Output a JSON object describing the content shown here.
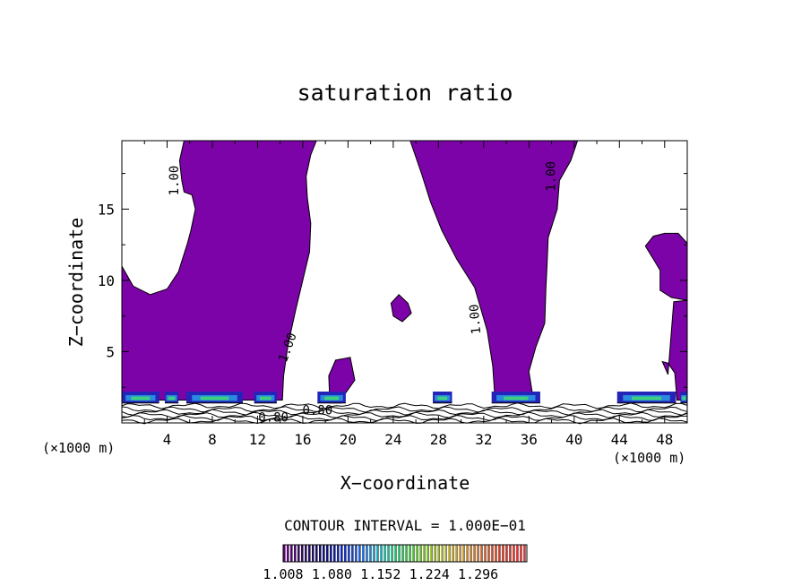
{
  "chart_data": {
    "type": "contour",
    "title": "saturation ratio",
    "xlabel": "X−coordinate",
    "ylabel": "Z−coordinate",
    "x_unit_left": "(×1000 m)",
    "x_unit_right": "(×1000 m)",
    "xlim": [
      0,
      50
    ],
    "ylim": [
      0,
      19.8
    ],
    "x_ticks": [
      4,
      8,
      12,
      16,
      20,
      24,
      28,
      32,
      36,
      40,
      44,
      48
    ],
    "x_tick_labels": [
      "4",
      "8",
      "12",
      "16",
      "20",
      "24",
      "28",
      "32",
      "36",
      "40",
      "44",
      "48"
    ],
    "y_ticks": [
      5,
      10,
      15
    ],
    "y_tick_labels": [
      "5",
      "10",
      "15"
    ],
    "contour_interval_text": "CONTOUR INTERVAL = 1.000E−01",
    "contour_labels": [
      {
        "text": "1.00",
        "x": 5.0,
        "z": 17.0,
        "angle": -90
      },
      {
        "text": "1.00",
        "x": 38.3,
        "z": 17.3,
        "angle": -90
      },
      {
        "text": "1.00",
        "x": 31.6,
        "z": 7.3,
        "angle": -95
      },
      {
        "text": "1.00",
        "x": 15.0,
        "z": 5.2,
        "angle": -70
      },
      {
        "text": "0.80",
        "x": 17.3,
        "z": 0.6,
        "angle": 0
      },
      {
        "text": "0.80",
        "x": 13.4,
        "z": 0.1,
        "angle": 0
      }
    ],
    "supersaturated_regions": [
      {
        "name": "western plume",
        "outline": [
          [
            0,
            11
          ],
          [
            1,
            9.6
          ],
          [
            2.5,
            9
          ],
          [
            4,
            9.4
          ],
          [
            5,
            10.6
          ],
          [
            5.8,
            12.6
          ],
          [
            6.1,
            13.5
          ],
          [
            6.5,
            15
          ],
          [
            6.2,
            16
          ],
          [
            5.5,
            16.2
          ],
          [
            5.3,
            17
          ],
          [
            5.1,
            18.4
          ],
          [
            5.5,
            19.8
          ],
          [
            17.2,
            19.8
          ],
          [
            16.7,
            18.8
          ],
          [
            16.3,
            17.3
          ],
          [
            16.4,
            15.8
          ],
          [
            16.7,
            14
          ],
          [
            16.6,
            12
          ],
          [
            16,
            10
          ],
          [
            15.4,
            8
          ],
          [
            14.7,
            5.5
          ],
          [
            14.3,
            3.3
          ],
          [
            14.2,
            1.6
          ],
          [
            0,
            1.6
          ]
        ]
      },
      {
        "name": "central tilted plume",
        "outline": [
          [
            25.5,
            19.8
          ],
          [
            40.3,
            19.8
          ],
          [
            39.7,
            18.4
          ],
          [
            38.7,
            17
          ],
          [
            38.5,
            15
          ],
          [
            37.7,
            13
          ],
          [
            37.6,
            11
          ],
          [
            37.5,
            9.5
          ],
          [
            37.4,
            7
          ],
          [
            36.6,
            5.3
          ],
          [
            36,
            3.6
          ],
          [
            36.4,
            1.6
          ],
          [
            33,
            1.6
          ],
          [
            32.8,
            4
          ],
          [
            32.3,
            6.5
          ],
          [
            31.2,
            9.5
          ],
          [
            29.6,
            11.5
          ],
          [
            28.3,
            13.5
          ],
          [
            27.3,
            15.5
          ],
          [
            26.5,
            17.5
          ]
        ]
      },
      {
        "name": "eastern blob",
        "outline": [
          [
            46.3,
            12.4
          ],
          [
            47,
            11.5
          ],
          [
            47.6,
            10.7
          ],
          [
            47.6,
            9.3
          ],
          [
            48.6,
            8.8
          ],
          [
            50,
            8.6
          ],
          [
            50,
            12.6
          ],
          [
            49.2,
            13.3
          ],
          [
            48,
            13.3
          ],
          [
            47,
            13.1
          ]
        ]
      },
      {
        "name": "eastern strip",
        "outline": [
          [
            48.8,
            8.5
          ],
          [
            50,
            8.6
          ],
          [
            50,
            1.6
          ],
          [
            49.1,
            1.6
          ],
          [
            48.9,
            3.5
          ],
          [
            48.3,
            4.2
          ],
          [
            47.8,
            4.3
          ],
          [
            48.3,
            3.4
          ]
        ]
      },
      {
        "name": "small blob near x=24",
        "outline": [
          [
            24.5,
            9
          ],
          [
            25.3,
            8.4
          ],
          [
            25.6,
            7.7
          ],
          [
            24.8,
            7.1
          ],
          [
            24,
            7.5
          ],
          [
            23.8,
            8.4
          ]
        ]
      },
      {
        "name": "small tower near x=19",
        "outline": [
          [
            18.4,
            1.4
          ],
          [
            18.3,
            3.3
          ],
          [
            18.9,
            4.4
          ],
          [
            20.2,
            4.6
          ],
          [
            20.6,
            3
          ],
          [
            19.7,
            2
          ],
          [
            19.4,
            1.4
          ]
        ]
      }
    ],
    "shallow_cloud_patches": [
      {
        "x": [
          0,
          3.3
        ]
      },
      {
        "x": [
          3.8,
          5.0
        ]
      },
      {
        "x": [
          5.7,
          10.7
        ]
      },
      {
        "x": [
          11.7,
          13.7
        ]
      },
      {
        "x": [
          17.3,
          19.8
        ]
      },
      {
        "x": [
          27.5,
          29.2
        ]
      },
      {
        "x": [
          32.7,
          37.0
        ]
      },
      {
        "x": [
          43.8,
          49.0
        ]
      },
      {
        "x": [
          49.4,
          50.0
        ]
      }
    ],
    "colorbar": {
      "min": 1.008,
      "max": 1.368,
      "tick_labels": [
        "1.008",
        "1.080",
        "1.152",
        "1.224",
        "1.296"
      ],
      "tick_values": [
        1.008,
        1.08,
        1.152,
        1.224,
        1.296
      ],
      "colors": [
        "#6e0088",
        "#2e1060",
        "#10107a",
        "#1630c8",
        "#2a7ae8",
        "#28c8b4",
        "#3cd060",
        "#8ad030",
        "#c8c840",
        "#d8a040",
        "#d87040",
        "#e04030",
        "#f04040"
      ]
    },
    "fill_color": "#7b03a8"
  }
}
